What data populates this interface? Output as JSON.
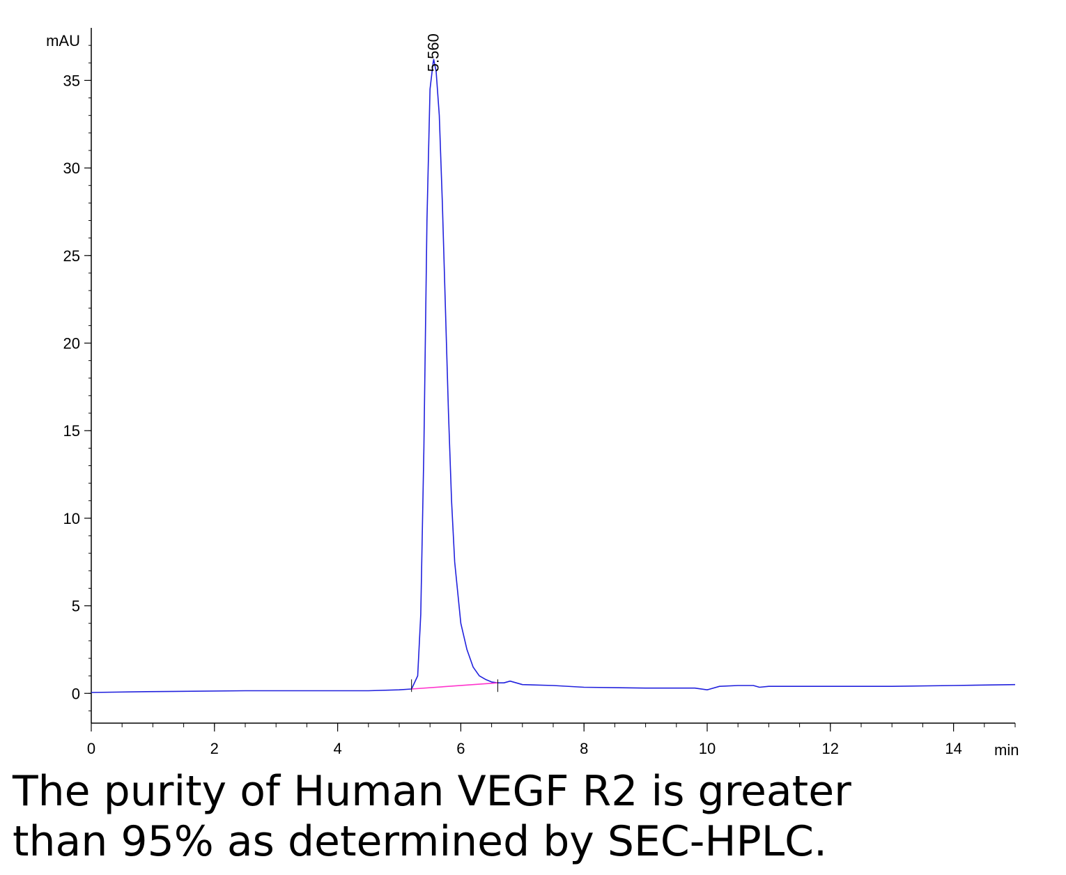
{
  "chart_data": {
    "type": "line",
    "title": "",
    "xlabel": "",
    "ylabel": "",
    "x_unit": "min",
    "y_unit": "mAU",
    "xlim": [
      0,
      15
    ],
    "ylim": [
      -1.7,
      38
    ],
    "x_ticks": [
      "0",
      "2",
      "4",
      "6",
      "8",
      "10",
      "12",
      "14"
    ],
    "y_ticks": [
      "0",
      "5",
      "10",
      "15",
      "20",
      "25",
      "30",
      "35"
    ],
    "grid": false,
    "legend": "none",
    "series": [
      {
        "color": "#2020dd",
        "x": [
          0,
          0.9,
          2.5,
          4.5,
          5.0,
          5.2,
          5.3,
          5.35,
          5.4,
          5.45,
          5.5,
          5.55,
          5.56,
          5.6,
          5.65,
          5.7,
          5.75,
          5.8,
          5.85,
          5.9,
          6.0,
          6.1,
          6.2,
          6.3,
          6.4,
          6.5,
          6.6,
          6.7,
          6.8,
          6.9,
          7.0,
          7.5,
          8.0,
          9.0,
          9.5,
          9.8,
          10.0,
          10.2,
          10.5,
          10.75,
          10.85,
          11.0,
          12.0,
          13.0,
          14.0,
          15.0
        ],
        "y": [
          0.05,
          0.1,
          0.15,
          0.15,
          0.2,
          0.25,
          1.0,
          4.5,
          14.0,
          27.0,
          34.5,
          36.0,
          36.2,
          35.5,
          33.0,
          28.0,
          22.0,
          16.0,
          11.0,
          7.5,
          4.0,
          2.5,
          1.5,
          1.0,
          0.8,
          0.65,
          0.6,
          0.6,
          0.7,
          0.6,
          0.5,
          0.45,
          0.35,
          0.3,
          0.3,
          0.3,
          0.2,
          0.4,
          0.45,
          0.45,
          0.35,
          0.4,
          0.4,
          0.4,
          0.45,
          0.5
        ]
      },
      {
        "color": "#ff33cc",
        "x": [
          5.2,
          6.6
        ],
        "y": [
          0.25,
          0.6
        ]
      }
    ],
    "annotations": [
      {
        "text": "5.560",
        "x": 5.56,
        "y": 36.2
      }
    ],
    "integration_marks": [
      5.2,
      6.6
    ]
  },
  "caption": {
    "line1": "The purity of Human VEGF R2 is greater",
    "line2": "than 95% as determined by SEC-HPLC."
  }
}
